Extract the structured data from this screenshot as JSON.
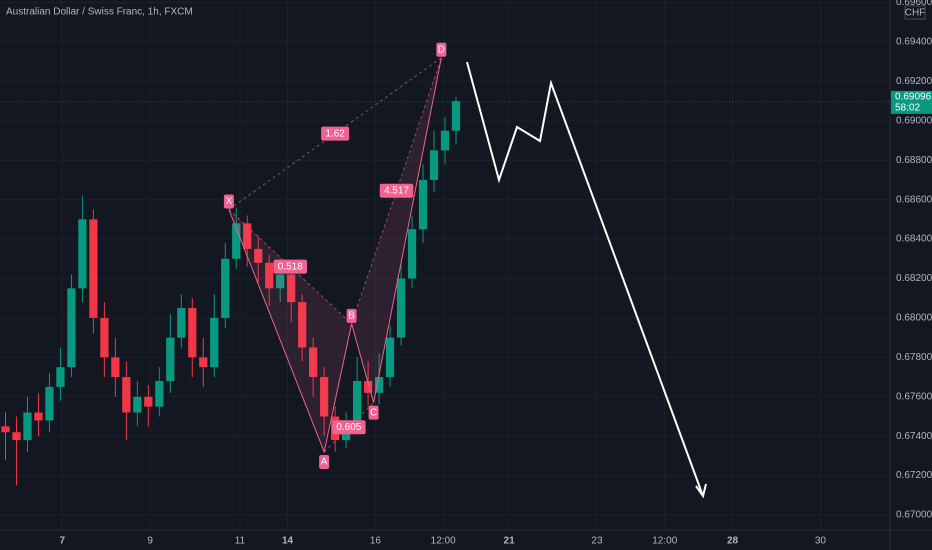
{
  "chart_data": {
    "type": "candlestick",
    "title": "Australian Dollar / Swiss Franc, 1h, FXCM",
    "currency": "CHF",
    "x": [
      3,
      9,
      15,
      21,
      27,
      33,
      39,
      45,
      51,
      57,
      63,
      69,
      75,
      81,
      87,
      93,
      99,
      105,
      111,
      117,
      123,
      129,
      135,
      141,
      147,
      153,
      159,
      165,
      171,
      177,
      183,
      189,
      195,
      201,
      207,
      213,
      219,
      225,
      231,
      237,
      243,
      249
    ],
    "open": [
      0.6745,
      0.6742,
      0.6738,
      0.6752,
      0.6748,
      0.6765,
      0.6775,
      0.6815,
      0.685,
      0.68,
      0.678,
      0.677,
      0.6752,
      0.676,
      0.6755,
      0.6768,
      0.679,
      0.6805,
      0.678,
      0.6775,
      0.68,
      0.683,
      0.6848,
      0.6835,
      0.6828,
      0.6815,
      0.6822,
      0.6808,
      0.6785,
      0.677,
      0.675,
      0.6738,
      0.6745,
      0.6768,
      0.6762,
      0.677,
      0.679,
      0.682,
      0.6845,
      0.687,
      0.6885,
      0.6895
    ],
    "high": [
      0.6752,
      0.675,
      0.676,
      0.6762,
      0.6772,
      0.6785,
      0.6822,
      0.6862,
      0.6855,
      0.6808,
      0.679,
      0.6778,
      0.6768,
      0.6766,
      0.6775,
      0.6802,
      0.6812,
      0.681,
      0.679,
      0.6812,
      0.6838,
      0.6856,
      0.6852,
      0.6842,
      0.6832,
      0.683,
      0.6826,
      0.6812,
      0.679,
      0.6775,
      0.6755,
      0.6752,
      0.678,
      0.6778,
      0.6782,
      0.6796,
      0.6828,
      0.6852,
      0.6878,
      0.6895,
      0.6902,
      0.6912
    ],
    "low": [
      0.6728,
      0.6715,
      0.6732,
      0.674,
      0.6742,
      0.6758,
      0.677,
      0.6808,
      0.6792,
      0.677,
      0.676,
      0.6738,
      0.6745,
      0.6745,
      0.675,
      0.6762,
      0.6785,
      0.677,
      0.6765,
      0.677,
      0.6795,
      0.6825,
      0.6826,
      0.6818,
      0.6806,
      0.6808,
      0.6798,
      0.6778,
      0.676,
      0.674,
      0.6732,
      0.6734,
      0.6742,
      0.6755,
      0.6756,
      0.6765,
      0.6786,
      0.6815,
      0.6838,
      0.6864,
      0.6878,
      0.6888
    ],
    "close": [
      0.6742,
      0.6738,
      0.6752,
      0.6748,
      0.6765,
      0.6775,
      0.6815,
      0.685,
      0.68,
      0.678,
      0.677,
      0.6752,
      0.676,
      0.6755,
      0.6768,
      0.679,
      0.6805,
      0.678,
      0.6775,
      0.68,
      0.683,
      0.6848,
      0.6835,
      0.6828,
      0.6815,
      0.6822,
      0.6808,
      0.6785,
      0.677,
      0.675,
      0.6738,
      0.6745,
      0.6768,
      0.6762,
      0.677,
      0.679,
      0.682,
      0.6845,
      0.687,
      0.6885,
      0.6895,
      0.691
    ],
    "up_color": "#089981",
    "down_color": "#f23645",
    "xlim": [
      0,
      486
    ],
    "xticks": [
      {
        "value": 34,
        "label": "7"
      },
      {
        "value": 82,
        "label": "9"
      },
      {
        "value": 131,
        "label": "11"
      },
      {
        "value": 157,
        "label": "14"
      },
      {
        "value": 205,
        "label": "16"
      },
      {
        "value": 242,
        "label": "12:00"
      },
      {
        "value": 278,
        "label": "21"
      },
      {
        "value": 326,
        "label": "23"
      },
      {
        "value": 363,
        "label": "12:00"
      },
      {
        "value": 400,
        "label": "28"
      },
      {
        "value": 448,
        "label": "30"
      }
    ],
    "ylim": [
      0.66924,
      0.69613
    ],
    "yticks": [
      {
        "value": 0.67,
        "label": "0.67000"
      },
      {
        "value": 0.672,
        "label": "0.67200"
      },
      {
        "value": 0.674,
        "label": "0.67400"
      },
      {
        "value": 0.676,
        "label": "0.67600"
      },
      {
        "value": 0.678,
        "label": "0.67800"
      },
      {
        "value": 0.68,
        "label": "0.68000"
      },
      {
        "value": 0.682,
        "label": "0.68200"
      },
      {
        "value": 0.684,
        "label": "0.68400"
      },
      {
        "value": 0.686,
        "label": "0.68600"
      },
      {
        "value": 0.688,
        "label": "0.68800"
      },
      {
        "value": 0.69,
        "label": "0.69000"
      },
      {
        "value": 0.692,
        "label": "0.69200"
      },
      {
        "value": 0.694,
        "label": "0.69400"
      },
      {
        "value": 0.696,
        "label": "0.69600"
      }
    ],
    "grid": true,
    "last_price": {
      "value": 0.69096,
      "label": "0.69096"
    },
    "countdown": "58:02",
    "pattern": {
      "color": "#f06292",
      "points": [
        {
          "label": "X",
          "x": 125,
          "y": 0.6855
        },
        {
          "label": "A",
          "x": 177,
          "y": 0.6732
        },
        {
          "label": "B",
          "x": 192,
          "y": 0.6797
        },
        {
          "label": "C",
          "x": 204,
          "y": 0.6757
        },
        {
          "label": "D",
          "x": 241,
          "y": 0.6932
        }
      ],
      "ratios": [
        1.62,
        0.518,
        0.605,
        4.517
      ]
    }
  }
}
